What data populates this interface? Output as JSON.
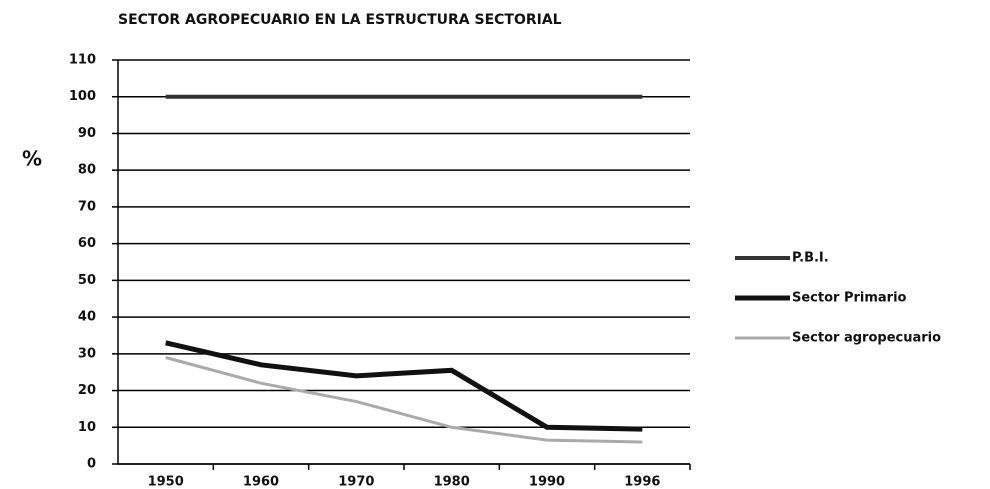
{
  "chart_data": {
    "type": "line",
    "title": "SECTOR AGROPECUARIO EN LA ESTRUCTURA SECTORIAL",
    "y_label": "%",
    "categories": [
      "1950",
      "1960",
      "1970",
      "1980",
      "1990",
      "1996"
    ],
    "series": [
      {
        "name": "P.B.I.",
        "color": "#333333",
        "values": [
          100,
          100,
          100,
          100,
          100,
          100
        ]
      },
      {
        "name": "Sector Primario",
        "color": "#111111",
        "values": [
          33,
          27,
          24,
          25.5,
          10,
          9.5
        ]
      },
      {
        "name": "Sector agropecuario",
        "color": "#aaaaaa",
        "values": [
          29,
          22,
          17,
          10,
          6.5,
          6
        ]
      }
    ],
    "ylim": [
      0,
      110
    ],
    "yticks": [
      0,
      10,
      20,
      30,
      40,
      50,
      60,
      70,
      80,
      90,
      100,
      110
    ],
    "grid": true,
    "legend": "right"
  }
}
